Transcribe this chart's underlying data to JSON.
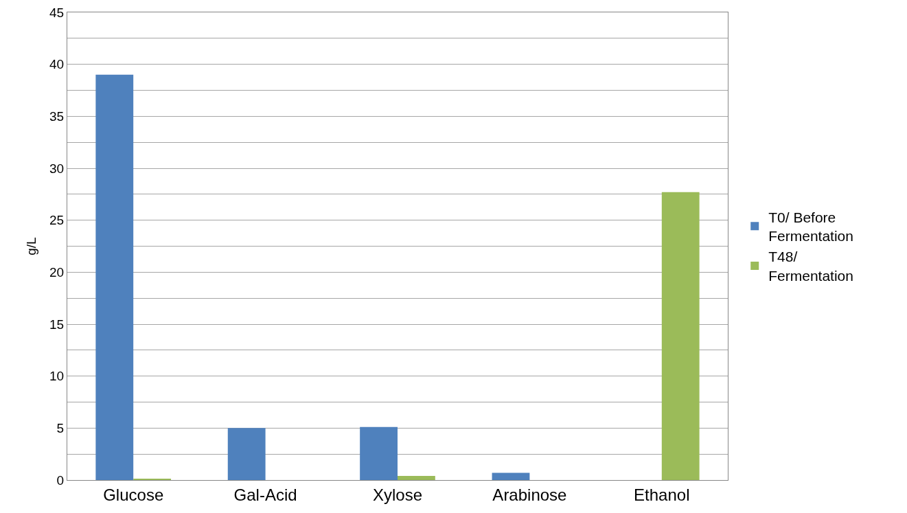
{
  "chart_data": {
    "type": "bar",
    "ylabel": "g/L",
    "categories": [
      "Glucose",
      "Gal-Acid",
      "Xylose",
      "Arabinose",
      "Ethanol"
    ],
    "series": [
      {
        "name": "T0/ Before Fermentation",
        "color": "#4f81bd",
        "values": [
          39,
          5,
          5.1,
          0.7,
          null
        ]
      },
      {
        "name": "T48/ Fermentation",
        "color": "#9bbb59",
        "values": [
          0.1,
          null,
          0.4,
          null,
          27.7
        ]
      }
    ],
    "ylim": [
      0,
      45
    ],
    "yticks": [
      0,
      {
        "value": 2.5,
        "label": null
      },
      5,
      {
        "value": 7.5,
        "label": null
      },
      10,
      {
        "value": 12.5,
        "label": null
      },
      15,
      {
        "value": 17.5,
        "label": null
      },
      20,
      {
        "value": 22.5,
        "label": null
      },
      25,
      {
        "value": 27.5,
        "label": null
      },
      30,
      {
        "value": 32.5,
        "label": null
      },
      35,
      {
        "value": 37.5,
        "label": null
      },
      40,
      {
        "value": 42.5,
        "label": null
      },
      45
    ],
    "grid": true,
    "legend": "right"
  }
}
